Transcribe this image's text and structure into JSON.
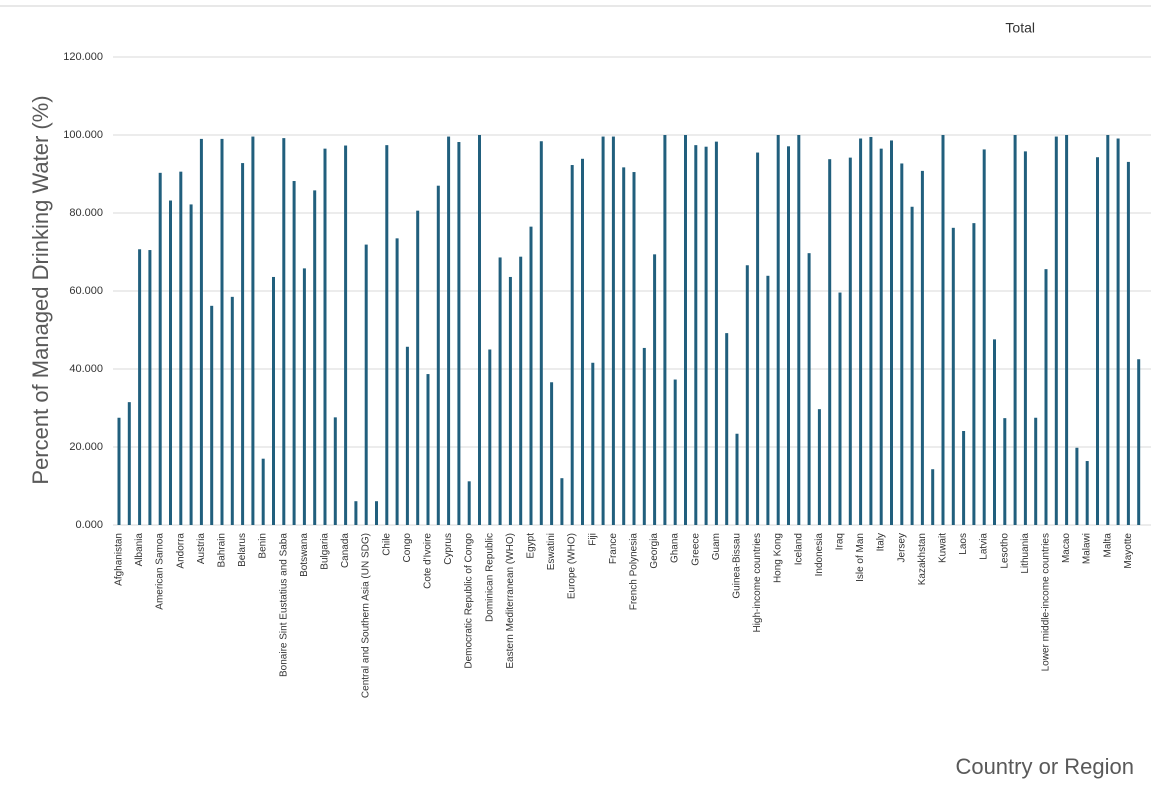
{
  "chart_data": {
    "type": "bar",
    "y_label": "Percent of Managed Drinking Water (%)",
    "x_label": "Country or Region",
    "ylim": [
      0,
      120
    ],
    "yticks": [
      {
        "value": 0,
        "label": "0.000"
      },
      {
        "value": 20,
        "label": "20.000"
      },
      {
        "value": 40,
        "label": "40.000"
      },
      {
        "value": 60,
        "label": "60.000"
      },
      {
        "value": 80,
        "label": "80.000"
      },
      {
        "value": 100,
        "label": "100.000"
      },
      {
        "value": 120,
        "label": "120.000"
      }
    ],
    "grid": true,
    "legend": "top-right",
    "categories": [
      "Afghanistan",
      null,
      "Albania",
      null,
      "American Samoa",
      null,
      "Andorra",
      null,
      "Austria",
      null,
      "Bahrain",
      null,
      "Belarus",
      null,
      "Benin",
      null,
      "Bonaire Sint Eustatius and Saba",
      null,
      "Botswana",
      null,
      "Bulgaria",
      null,
      "Canada",
      null,
      "Central and Southern Asia (UN SDG)",
      null,
      "Chile",
      null,
      "Congo",
      null,
      "Cote d'Ivoire",
      null,
      "Cyprus",
      null,
      "Democratic Republic of Congo",
      null,
      "Dominican Republic",
      null,
      "Eastern Mediterranean (WHO)",
      null,
      "Egypt",
      null,
      "Eswatini",
      null,
      "Europe (WHO)",
      null,
      "Fiji",
      null,
      "France",
      null,
      "French Polynesia",
      null,
      "Georgia",
      null,
      "Ghana",
      null,
      "Greece",
      null,
      "Guam",
      null,
      "Guinea-Bissau",
      null,
      "High-income countries",
      null,
      "Hong Kong",
      null,
      "Iceland",
      null,
      "Indonesia",
      null,
      "Iraq",
      null,
      "Isle of Man",
      null,
      "Italy",
      null,
      "Jersey",
      null,
      "Kazakhstan",
      null,
      "Kuwait",
      null,
      "Laos",
      null,
      "Latvia",
      null,
      "Lesotho",
      null,
      "Lithuania",
      null,
      "Lower middle-income countries",
      null,
      "Macao",
      null,
      "Malawi",
      null,
      "Malta",
      null,
      "Mayotte",
      null
    ],
    "series": [
      {
        "name": "Total",
        "color": "#215f7d",
        "values": [
          27.5,
          31.5,
          70.7,
          70.5,
          90.3,
          83.2,
          90.6,
          82.2,
          99,
          56.2,
          99,
          58.5,
          92.8,
          99.6,
          17,
          63.6,
          99.2,
          88.2,
          65.8,
          85.8,
          96.5,
          27.6,
          97.3,
          6.1,
          71.9,
          6.1,
          97.4,
          73.5,
          45.7,
          80.6,
          38.7,
          87,
          99.6,
          98.2,
          11.2,
          100,
          45,
          68.6,
          63.6,
          68.8,
          76.5,
          98.4,
          36.6,
          12,
          92.3,
          93.9,
          41.6,
          99.6,
          99.6,
          91.7,
          90.5,
          45.4,
          69.4,
          100,
          37.3,
          100,
          97.4,
          97,
          98.3,
          49.2,
          23.4,
          66.6,
          95.5,
          63.9,
          100,
          97.1,
          100,
          69.7,
          29.7,
          93.8,
          59.6,
          94.2,
          99.1,
          99.5,
          96.5,
          98.6,
          92.7,
          81.6,
          90.8,
          14.3,
          100,
          76.2,
          24.1,
          77.4,
          96.3,
          47.6,
          27.4,
          100,
          95.8,
          27.5,
          65.6,
          99.6,
          100,
          19.8,
          16.4,
          94.3,
          100,
          99.1,
          93.1,
          42.5
        ]
      }
    ]
  }
}
